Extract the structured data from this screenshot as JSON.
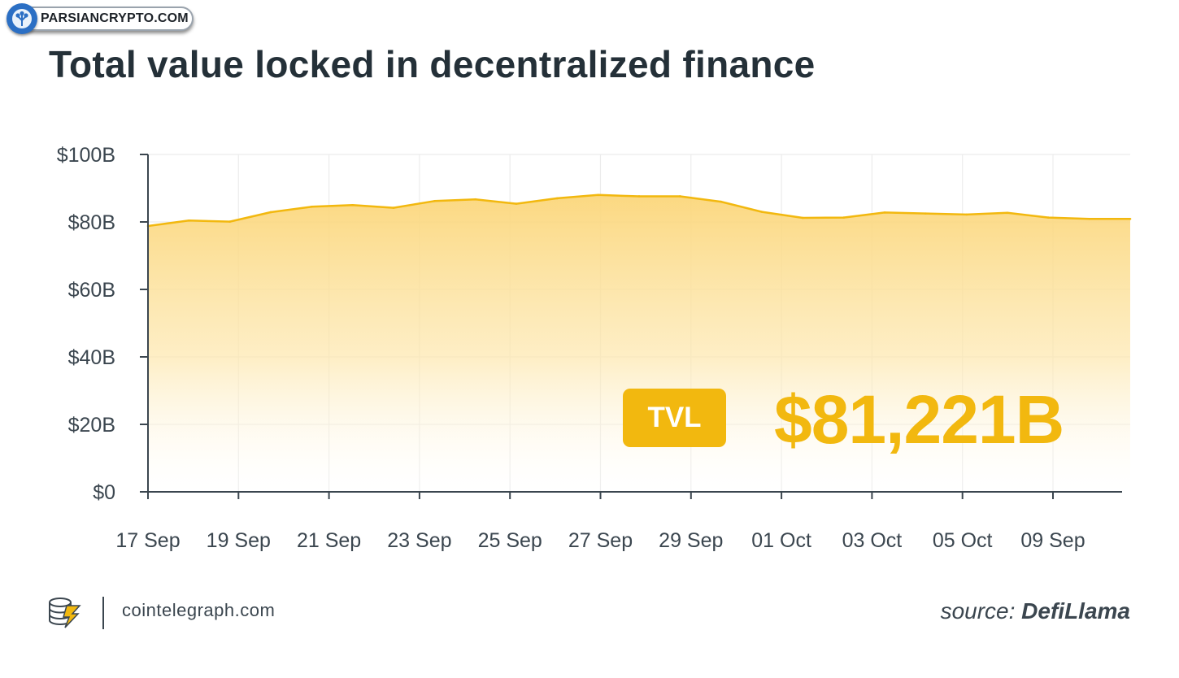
{
  "watermark": {
    "text": "PARSIANCRYPTO.COM",
    "icon": "tree-logo-icon"
  },
  "chart_data": {
    "type": "area",
    "title": "Total value locked in decentralized finance",
    "xlabel": "",
    "ylabel": "",
    "y_ticks": [
      "$0",
      "$20B",
      "$40B",
      "$60B",
      "$80B",
      "$100B"
    ],
    "ylim": [
      0,
      100
    ],
    "x_tick_labels": [
      "17 Sep",
      "19 Sep",
      "21 Sep",
      "23 Sep",
      "25 Sep",
      "27 Sep",
      "29 Sep",
      "01 Oct",
      "03 Oct",
      "05 Oct",
      "09 Sep"
    ],
    "series": [
      {
        "values": [
          78.8,
          80.4,
          80.1,
          82.9,
          84.5,
          85.0,
          84.2,
          86.2,
          86.7,
          85.4,
          87.0,
          88.0,
          87.6,
          87.6,
          86.0,
          83.0,
          81.2,
          81.3,
          82.8,
          82.5,
          82.2,
          82.7,
          81.3,
          80.9,
          80.9
        ]
      }
    ],
    "grid": true,
    "line_color": "#f2b80f",
    "fill_color": "#fbd77a",
    "callout": {
      "label": "TVL",
      "value": "$81,221B"
    }
  },
  "footer": {
    "site": "cointelegraph.com",
    "source_prefix": "source: ",
    "source_name": "DefiLlama",
    "logo_icon": "coin-stack-lightning-icon"
  }
}
